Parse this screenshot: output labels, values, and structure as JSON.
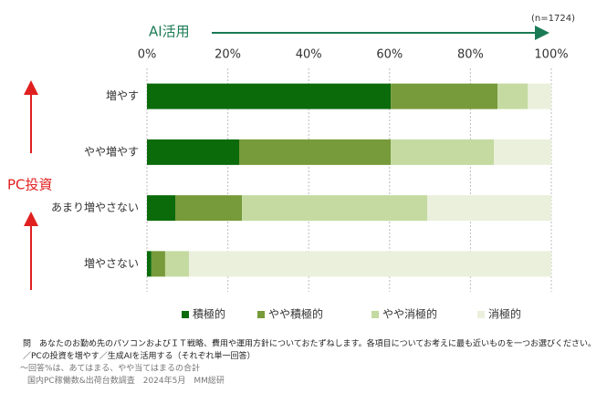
{
  "chart_data": {
    "type": "stacked-bar-horizontal",
    "x_axis_label": "AI活用",
    "y_axis_label": "PC投資",
    "sample_note": "(n=1724)",
    "categories": [
      "増やす",
      "やや増やす",
      "あまり増やさない",
      "増やさない"
    ],
    "series": [
      {
        "name": "積極的",
        "color": "#0b6b0b",
        "values": [
          60.3,
          22.8,
          7.0,
          1.1
        ]
      },
      {
        "name": "やや積極的",
        "color": "#779a3a",
        "values": [
          26.4,
          37.5,
          16.5,
          3.4
        ]
      },
      {
        "name": "やや消極的",
        "color": "#c4daa0",
        "values": [
          7.5,
          25.5,
          45.8,
          5.9
        ]
      },
      {
        "name": "消極的",
        "color": "#ebf0dd",
        "values": [
          5.8,
          14.2,
          30.7,
          89.6
        ]
      }
    ],
    "xlim": [
      0,
      100
    ],
    "xticks": [
      {
        "value": 0,
        "label": "0%"
      },
      {
        "value": 20,
        "label": "20%"
      },
      {
        "value": 40,
        "label": "40%"
      },
      {
        "value": 60,
        "label": "60%"
      },
      {
        "value": 80,
        "label": "80%"
      },
      {
        "value": 100,
        "label": "100%"
      }
    ],
    "grid": true,
    "notes": [
      "問　あなたのお勤め先のパソコンおよびＩＴ戦略、費用や運用方針についておたずねします。各項目についてお考えに最も近いものを一つお選びください。",
      "／PCの投資を増やす／生成AIを活用する（それぞれ単一回答）",
      "〜回答%は、あてはまる、やや当てはまるの合計",
      "国内PC稼働数&出荷台数調査　2024年5月　MM総研"
    ]
  }
}
